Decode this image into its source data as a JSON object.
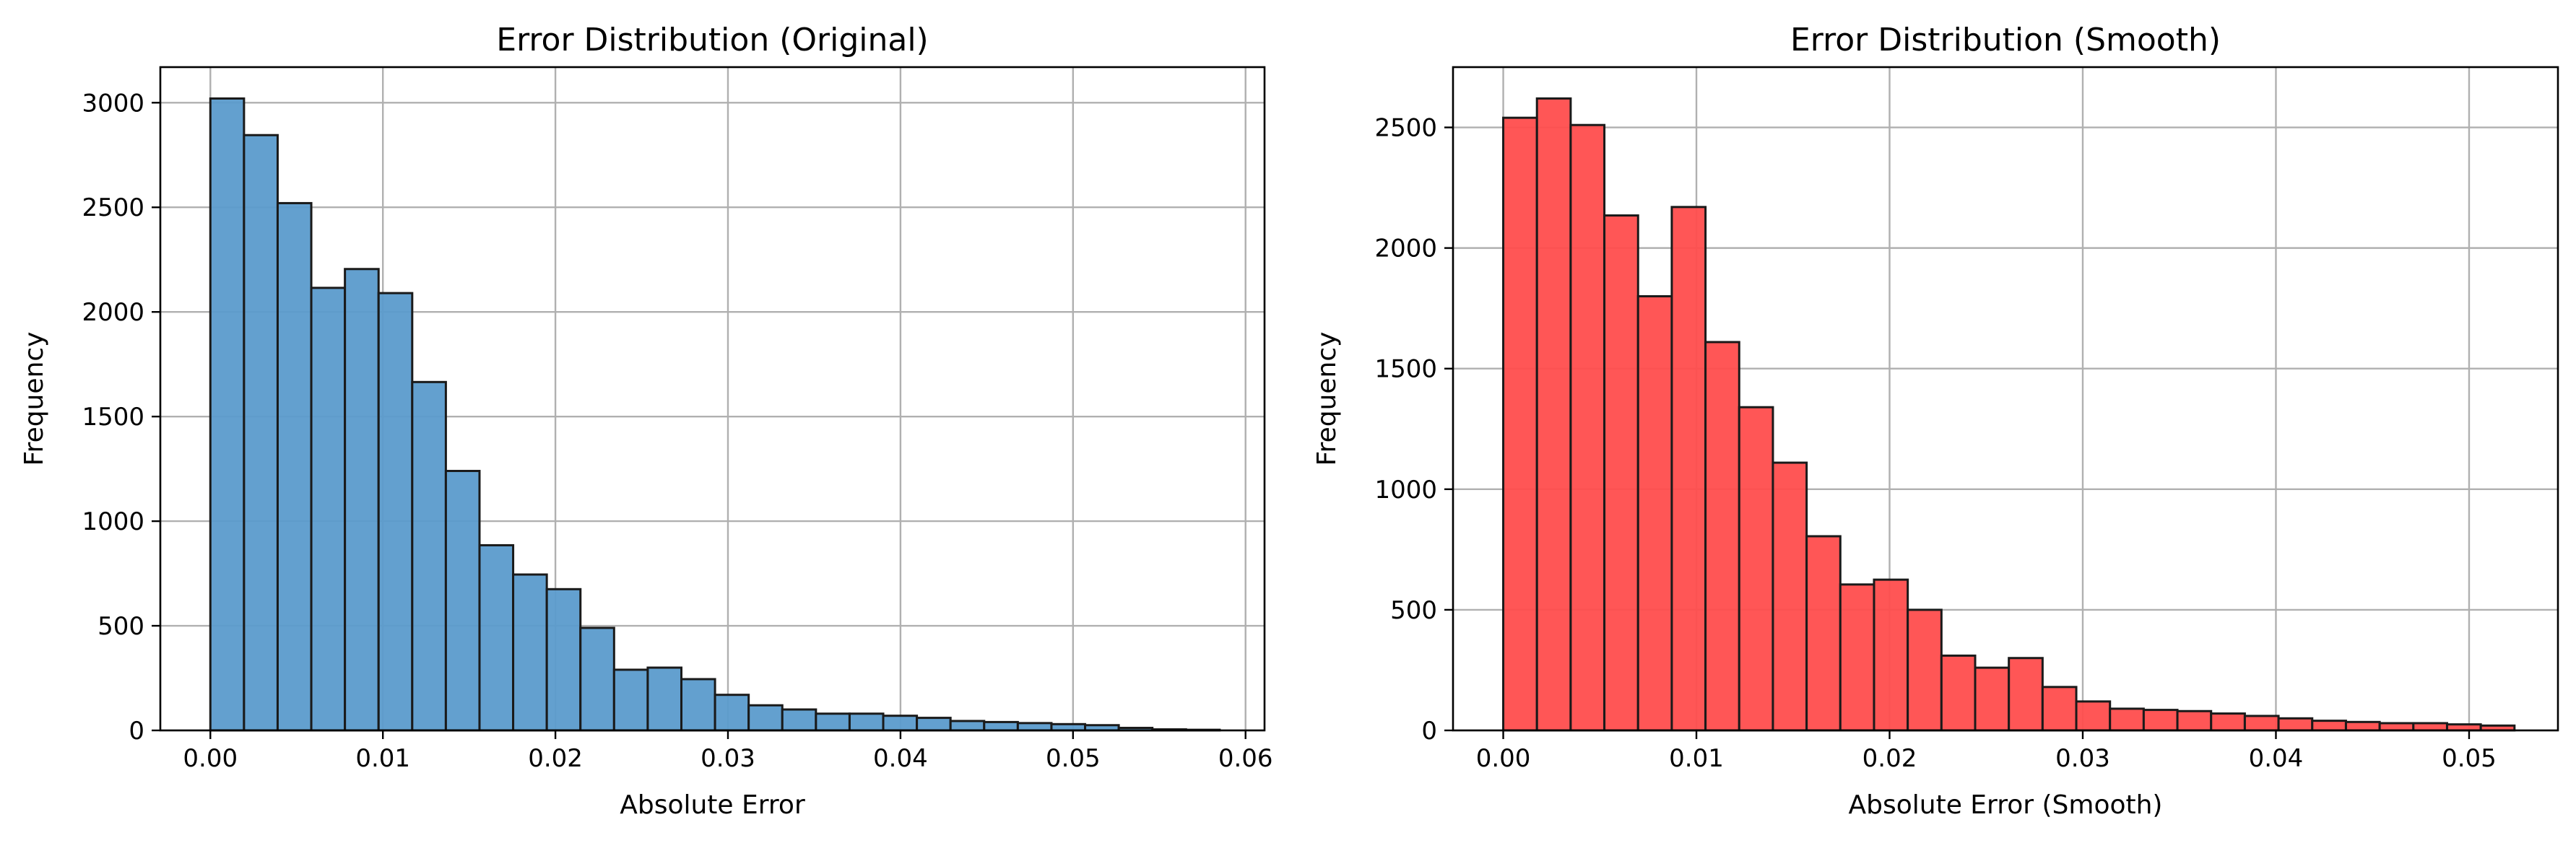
{
  "chart_data": [
    {
      "type": "bar",
      "title": "Error Distribution (Original)",
      "xlabel": "Absolute Error",
      "ylabel": "Frequency",
      "xlim": [
        -0.0029,
        0.0611
      ],
      "ylim": [
        0,
        3170
      ],
      "xticks": [
        0.0,
        0.01,
        0.02,
        0.03,
        0.04,
        0.05,
        0.06
      ],
      "xtick_labels": [
        "0.00",
        "0.01",
        "0.02",
        "0.03",
        "0.04",
        "0.05",
        "0.06"
      ],
      "yticks": [
        0,
        500,
        1000,
        1500,
        2000,
        2500,
        3000
      ],
      "ytick_labels": [
        "0",
        "500",
        "1000",
        "1500",
        "2000",
        "2500",
        "3000"
      ],
      "bin_start": 0.0,
      "bin_width": 0.00195,
      "values": [
        3020,
        2845,
        2520,
        2115,
        2205,
        2090,
        1665,
        1240,
        885,
        745,
        675,
        490,
        290,
        300,
        245,
        170,
        120,
        100,
        80,
        80,
        70,
        60,
        45,
        40,
        35,
        30,
        25,
        12,
        5,
        3
      ],
      "color": "#5b9bcc",
      "edgecolor": "#1a1a1a",
      "grid": true
    },
    {
      "type": "bar",
      "title": "Error Distribution (Smooth)",
      "xlabel": "Absolute Error (Smooth)",
      "ylabel": "Frequency",
      "xlim": [
        -0.0026,
        0.0546
      ],
      "ylim": [
        0,
        2750
      ],
      "xticks": [
        0.0,
        0.01,
        0.02,
        0.03,
        0.04,
        0.05
      ],
      "xtick_labels": [
        "0.00",
        "0.01",
        "0.02",
        "0.03",
        "0.04",
        "0.05"
      ],
      "yticks": [
        0,
        500,
        1000,
        1500,
        2000,
        2500
      ],
      "ytick_labels": [
        "0",
        "500",
        "1000",
        "1500",
        "2000",
        "2500"
      ],
      "bin_start": 0.0,
      "bin_width": 0.001745,
      "values": [
        2540,
        2620,
        2510,
        2135,
        1800,
        2170,
        1610,
        1340,
        1110,
        805,
        605,
        625,
        500,
        310,
        260,
        300,
        180,
        120,
        90,
        85,
        80,
        70,
        60,
        50,
        40,
        35,
        30,
        30,
        25,
        20
      ],
      "color": "#ff4d4d",
      "edgecolor": "#1a1a1a",
      "grid": true
    }
  ]
}
